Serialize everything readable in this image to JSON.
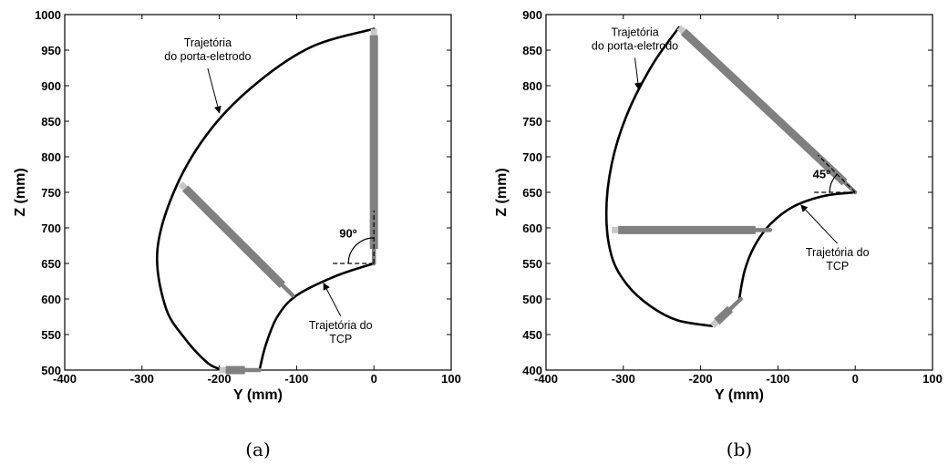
{
  "colors": {
    "trajectory": "#000000",
    "tool_body": "#808080",
    "tool_tip": "#c8c8c8"
  },
  "chart_data": [
    {
      "type": "line",
      "caption": "(a)",
      "xlabel": "Y (mm)",
      "ylabel": "Z (mm)",
      "xlim": [
        -400,
        100
      ],
      "ylim": [
        500,
        1000
      ],
      "xticks": [
        "-400",
        "-300",
        "-200",
        "-100",
        "0",
        "100"
      ],
      "yticks": [
        "500",
        "550",
        "600",
        "650",
        "700",
        "750",
        "800",
        "850",
        "900",
        "950",
        "1000"
      ],
      "grid": false,
      "series": [
        {
          "role": "electrode_holder_path",
          "color": "#000000",
          "x": [
            0,
            -80,
            -150,
            -210,
            -255,
            -280,
            -270,
            -245,
            -215,
            -195
          ],
          "y": [
            980,
            955,
            905,
            840,
            760,
            670,
            590,
            545,
            510,
            500
          ]
        },
        {
          "role": "tcp_path",
          "color": "#000000",
          "x": [
            0,
            -50,
            -100,
            -125,
            -140,
            -148
          ],
          "y": [
            650,
            632,
            605,
            575,
            535,
            500
          ]
        }
      ],
      "tools": [
        {
          "base": [
            0,
            650
          ],
          "tip": [
            0,
            980
          ]
        },
        {
          "base": [
            -105,
            605
          ],
          "tip": [
            -250,
            762
          ]
        },
        {
          "base": [
            -148,
            500
          ],
          "tip": [
            -200,
            500
          ]
        }
      ],
      "angle": {
        "vertex": [
          0,
          650
        ],
        "start_deg": 180,
        "end_deg": 90,
        "label": "90º"
      },
      "annotations": [
        {
          "text_lines": [
            "Trajetória",
            "do porta-eletrodo"
          ],
          "text_at": [
            -215,
            955
          ],
          "arrow_to": [
            -200,
            862
          ]
        },
        {
          "text_lines": [
            "Trajetória do",
            "TCP"
          ],
          "text_at": [
            -43,
            558
          ],
          "arrow_to": [
            -65,
            622
          ]
        }
      ]
    },
    {
      "type": "line",
      "caption": "(b)",
      "xlabel": "Y (mm)",
      "ylabel": "Z (mm)",
      "xlim": [
        -400,
        100
      ],
      "ylim": [
        400,
        900
      ],
      "xticks": [
        "-400",
        "-300",
        "-200",
        "-100",
        "0",
        "100"
      ],
      "yticks": [
        "400",
        "450",
        "500",
        "550",
        "600",
        "650",
        "700",
        "750",
        "800",
        "850",
        "900"
      ],
      "grid": false,
      "series": [
        {
          "role": "electrode_holder_path",
          "color": "#000000",
          "x": [
            -228,
            -262,
            -295,
            -315,
            -322,
            -315,
            -295,
            -265,
            -230,
            -185
          ],
          "y": [
            882,
            830,
            760,
            690,
            620,
            560,
            520,
            490,
            470,
            462
          ]
        },
        {
          "role": "tcp_path",
          "color": "#000000",
          "x": [
            0,
            -40,
            -80,
            -110,
            -130,
            -143,
            -150
          ],
          "y": [
            650,
            645,
            630,
            605,
            575,
            540,
            500
          ]
        }
      ],
      "tools": [
        {
          "base": [
            0,
            650
          ],
          "tip": [
            -228,
            882
          ]
        },
        {
          "base": [
            -110,
            597
          ],
          "tip": [
            -315,
            597
          ]
        },
        {
          "base": [
            -148,
            500
          ],
          "tip": [
            -185,
            462
          ]
        }
      ],
      "angle": {
        "vertex": [
          0,
          650
        ],
        "start_deg": 180,
        "end_deg": 135,
        "label": "45º"
      },
      "annotations": [
        {
          "text_lines": [
            "Trajetória",
            "do porta-eletrodo"
          ],
          "text_at": [
            -285,
            870
          ],
          "arrow_to": [
            -280,
            795
          ]
        },
        {
          "text_lines": [
            "Trajetória do",
            "TCP"
          ],
          "text_at": [
            -23,
            560
          ],
          "arrow_to": [
            -70,
            632
          ]
        }
      ]
    }
  ]
}
